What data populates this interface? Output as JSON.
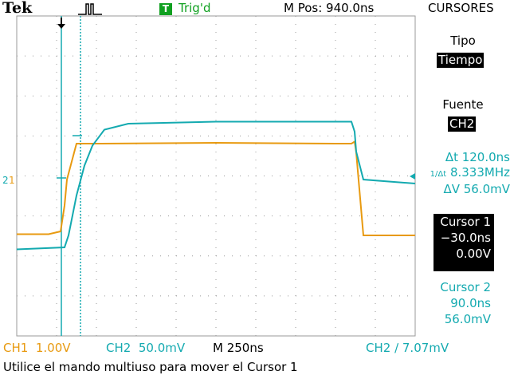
{
  "header": {
    "brand": "Tek",
    "trigger_badge": "T",
    "trigger_status": "Trig'd",
    "position": "M Pos: 940.0ns",
    "menu_title": "CURSORES"
  },
  "menu": {
    "tipo_label": "Tipo",
    "tipo_value": "Tiempo",
    "fuente_label": "Fuente",
    "fuente_value": "CH2"
  },
  "readouts": {
    "delta_t": "Δt 120.0ns",
    "inv_delta_t_symbol": "1/Δt",
    "inv_delta_t_value": "8.333MHz",
    "delta_v": "ΔV 56.0mV"
  },
  "cursor1": {
    "label": "Cursor 1",
    "time": "−30.0ns",
    "value": "0.00V"
  },
  "cursor2": {
    "label": "Cursor 2",
    "time": "90.0ns",
    "value": "56.0mV"
  },
  "status": {
    "ch1": "CH1  1.00V",
    "ch2": "CH2  50.0mV",
    "timebase": "M 250ns",
    "trigger": "CH2 ∕ 7.07mV"
  },
  "message": "Utilice el mando multiuso para mover el Cursor 1",
  "colors": {
    "ch1": "#e89a10",
    "ch2": "#14aab0",
    "trigger": "#10a020",
    "grid": "#9a9a9a"
  },
  "chart_data": {
    "type": "line",
    "title": "",
    "xlabel": "",
    "ylabel": "",
    "x_unit": "ns",
    "xlim": [
      -2500,
      2500
    ],
    "series": [
      {
        "name": "CH1",
        "x": [
          -2500,
          -2100,
          -1950,
          -1900,
          -1870,
          -1750,
          -1500,
          0,
          1500,
          1700,
          1740,
          1760,
          1850,
          2500
        ],
        "y": [
          -2.27,
          -2.27,
          -2.2,
          -1.55,
          -0.9,
          0.0,
          0.0,
          0.02,
          0.0,
          0.0,
          0.05,
          -0.22,
          -2.3,
          -2.3
        ]
      },
      {
        "name": "CH2",
        "x": [
          -2500,
          -1900,
          -1850,
          -1750,
          -1650,
          -1550,
          -1400,
          -1100,
          0,
          1700,
          1740,
          1760,
          1850,
          2500
        ],
        "y": [
          -2.65,
          -2.6,
          -2.3,
          -1.3,
          -0.55,
          -0.05,
          0.35,
          0.5,
          0.55,
          0.55,
          0.3,
          -0.2,
          -0.9,
          -1.0
        ]
      }
    ]
  }
}
